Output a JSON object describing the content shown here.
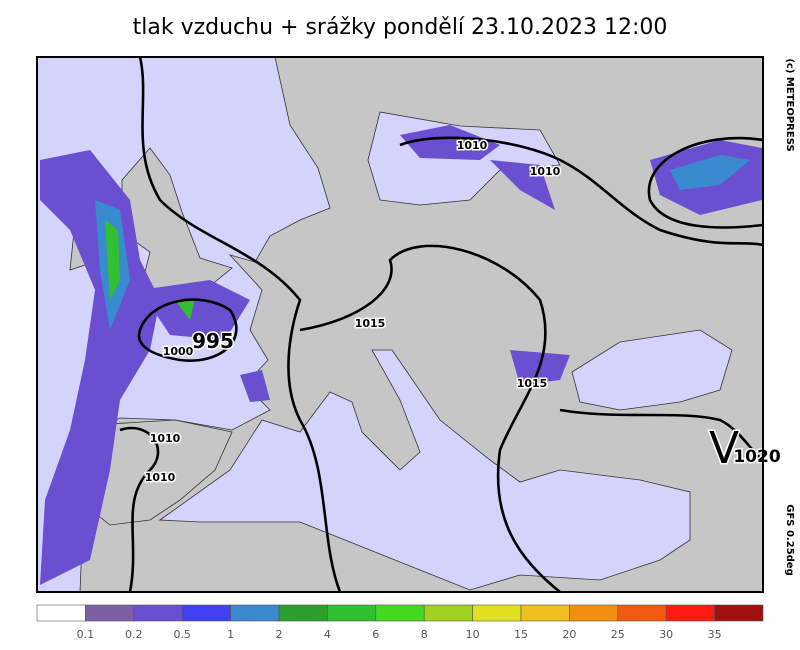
{
  "header": {
    "title": "tlak vzduchu + srážky pondělí 23.10.2023 12:00"
  },
  "credits": {
    "copyright": "(c) METEOPRESS",
    "model": "GFS 0.25deg"
  },
  "isobar_labels": [
    "1010",
    "1010",
    "1015",
    "1000",
    "995",
    "1015",
    "1010",
    "1010",
    "V",
    "1020"
  ],
  "legend": {
    "colors": [
      "#ffffff",
      "#7d5fa6",
      "#6a4fd0",
      "#4040f0",
      "#3a8ad0",
      "#2c9e2c",
      "#30c030",
      "#44d822",
      "#a0d020",
      "#e0e020",
      "#f0c020",
      "#f09010",
      "#f05a10",
      "#ff1a10",
      "#a01010"
    ],
    "labels": [
      "0.1",
      "0.2",
      "0.5",
      "1",
      "2",
      "4",
      "6",
      "8",
      "10",
      "15",
      "20",
      "25",
      "30",
      "35"
    ]
  }
}
